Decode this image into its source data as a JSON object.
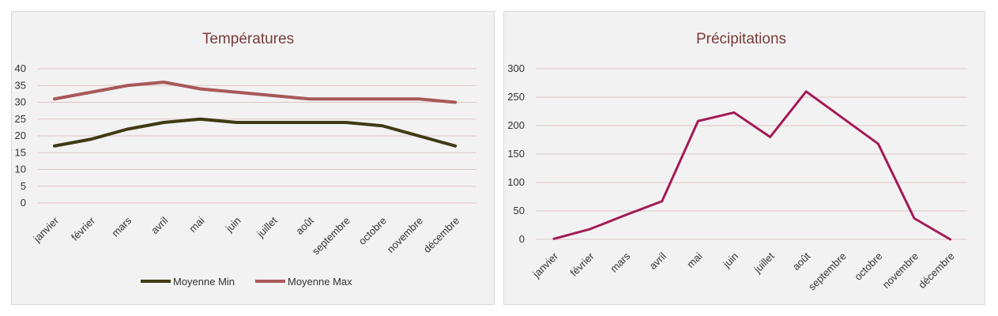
{
  "chart_data": [
    {
      "type": "line",
      "title": "Températures",
      "xlabel": "",
      "ylabel": "",
      "categories": [
        "janvier",
        "février",
        "mars",
        "avril",
        "mai",
        "juin",
        "juillet",
        "août",
        "septembre",
        "octobre",
        "novembre",
        "décembre"
      ],
      "yticks": [
        "0",
        "5",
        "10",
        "15",
        "20",
        "25",
        "30",
        "35",
        "40"
      ],
      "ylim": [
        0,
        40
      ],
      "grid": true,
      "legend": "bottom",
      "series": [
        {
          "name": "Moyenne Min",
          "color": "#3f3a12",
          "values": [
            17,
            19,
            22,
            24,
            25,
            24,
            24,
            24,
            24,
            23,
            20,
            17
          ]
        },
        {
          "name": "Moyenne Max",
          "color": "#a8585a",
          "values": [
            31,
            33,
            35,
            36,
            34,
            33,
            32,
            31,
            31,
            31,
            31,
            30
          ]
        }
      ]
    },
    {
      "type": "line",
      "title": "Précipitations",
      "xlabel": "",
      "ylabel": "",
      "categories": [
        "janvier",
        "février",
        "mars",
        "avril",
        "mai",
        "juin",
        "juillet",
        "août",
        "septembre",
        "octobre",
        "novembre",
        "décembre"
      ],
      "yticks": [
        "0",
        "50",
        "100",
        "150",
        "200",
        "250",
        "300"
      ],
      "ylim": [
        0,
        300
      ],
      "grid": true,
      "legend": "none",
      "series": [
        {
          "color": "#a31a55",
          "values": [
            1,
            18,
            43,
            67,
            208,
            223,
            180,
            260,
            214,
            168,
            37,
            0
          ]
        }
      ]
    }
  ],
  "colors": {
    "gridline": "#e0c4c4",
    "panel_bg": "#f2f2f2",
    "title": "#7a3b3b"
  }
}
